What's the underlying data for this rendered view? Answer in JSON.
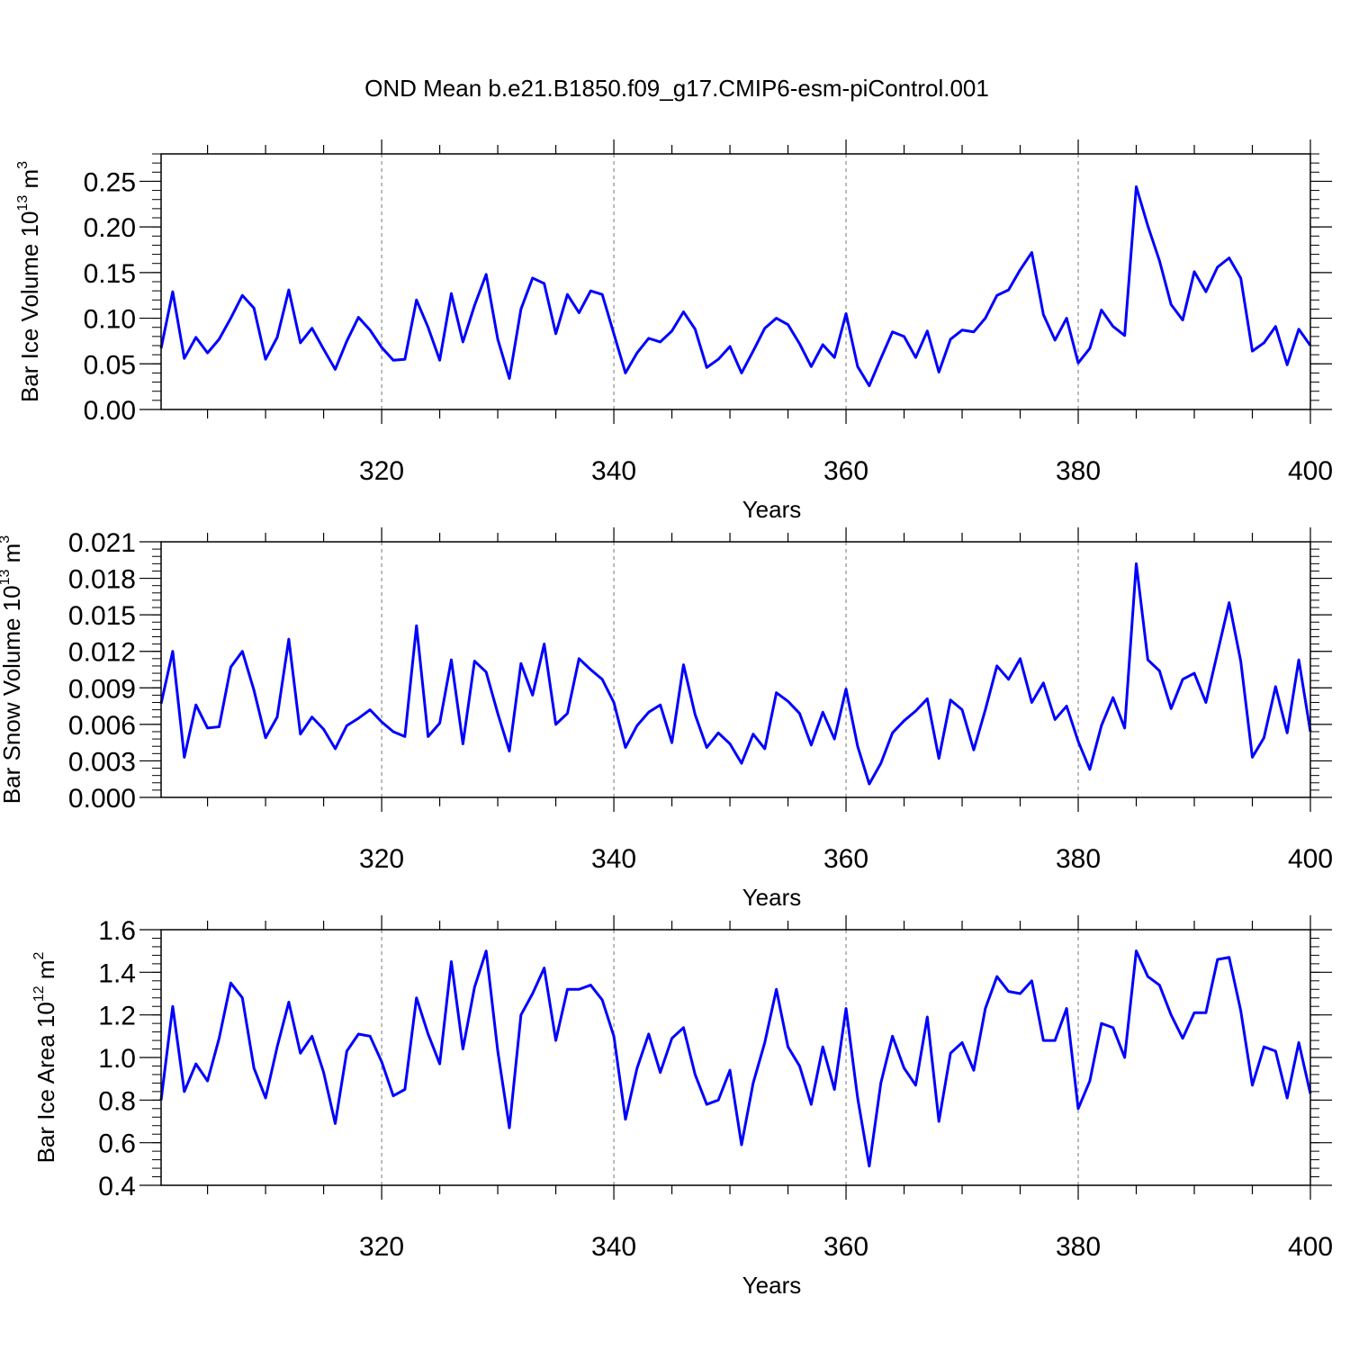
{
  "title": "OND Mean b.e21.B1850.f09_g17.CMIP6-esm-piControl.001",
  "colors": {
    "line": "#0000ff",
    "axis": "#000000",
    "grid": "#777777"
  },
  "chart_data": [
    {
      "type": "line",
      "xlabel": "Years",
      "ylabel": "Bar Ice Volume 10",
      "ylabel_exp": "13",
      "ylabel_unit": " m",
      "ylabel_unit_exp": "3",
      "xlim": [
        301,
        400
      ],
      "ylim": [
        0.0,
        0.28
      ],
      "xticks": [
        320,
        340,
        360,
        380,
        400
      ],
      "xtick_labels": [
        "320",
        "340",
        "360",
        "380",
        "400"
      ],
      "yticks": [
        0.0,
        0.05,
        0.1,
        0.15,
        0.2,
        0.25
      ],
      "ytick_labels": [
        "0.00",
        "0.05",
        "0.10",
        "0.15",
        "0.20",
        "0.25"
      ],
      "grid_x": true,
      "x": [
        301,
        302,
        303,
        304,
        305,
        306,
        307,
        308,
        309,
        310,
        311,
        312,
        313,
        314,
        315,
        316,
        317,
        318,
        319,
        320,
        321,
        322,
        323,
        324,
        325,
        326,
        327,
        328,
        329,
        330,
        331,
        332,
        333,
        334,
        335,
        336,
        337,
        338,
        339,
        340,
        341,
        342,
        343,
        344,
        345,
        346,
        347,
        348,
        349,
        350,
        351,
        352,
        353,
        354,
        355,
        356,
        357,
        358,
        359,
        360,
        361,
        362,
        363,
        364,
        365,
        366,
        367,
        368,
        369,
        370,
        371,
        372,
        373,
        374,
        375,
        376,
        377,
        378,
        379,
        380,
        381,
        382,
        383,
        384,
        385,
        386,
        387,
        388,
        389,
        390,
        391,
        392,
        393,
        394,
        395,
        396,
        397,
        398,
        399,
        400
      ],
      "series": [
        {
          "values": [
            0.067,
            0.129,
            0.056,
            0.079,
            0.062,
            0.077,
            0.1,
            0.125,
            0.111,
            0.055,
            0.079,
            0.131,
            0.073,
            0.089,
            0.066,
            0.044,
            0.075,
            0.101,
            0.087,
            0.068,
            0.054,
            0.055,
            0.12,
            0.09,
            0.054,
            0.127,
            0.074,
            0.114,
            0.148,
            0.077,
            0.034,
            0.11,
            0.144,
            0.138,
            0.083,
            0.126,
            0.106,
            0.13,
            0.126,
            0.083,
            0.04,
            0.062,
            0.078,
            0.074,
            0.086,
            0.107,
            0.088,
            0.046,
            0.055,
            0.069,
            0.04,
            0.064,
            0.089,
            0.1,
            0.093,
            0.072,
            0.047,
            0.071,
            0.057,
            0.105,
            0.047,
            0.026,
            0.056,
            0.085,
            0.08,
            0.057,
            0.086,
            0.041,
            0.077,
            0.087,
            0.085,
            0.1,
            0.125,
            0.131,
            0.153,
            0.172,
            0.104,
            0.076,
            0.1,
            0.051,
            0.067,
            0.109,
            0.091,
            0.081,
            0.244,
            0.201,
            0.163,
            0.115,
            0.098,
            0.151,
            0.129,
            0.156,
            0.166,
            0.144,
            0.064,
            0.073,
            0.091,
            0.049,
            0.088,
            0.07
          ]
        }
      ]
    },
    {
      "type": "line",
      "xlabel": "Years",
      "ylabel": "Bar Snow Volume 10",
      "ylabel_exp": "13",
      "ylabel_unit": " m",
      "ylabel_unit_exp": "3",
      "xlim": [
        301,
        400
      ],
      "ylim": [
        0.0,
        0.021
      ],
      "xticks": [
        320,
        340,
        360,
        380,
        400
      ],
      "xtick_labels": [
        "320",
        "340",
        "360",
        "380",
        "400"
      ],
      "yticks": [
        0.0,
        0.003,
        0.006,
        0.009,
        0.012,
        0.015,
        0.018,
        0.021
      ],
      "ytick_labels": [
        "0.000",
        "0.003",
        "0.006",
        "0.009",
        "0.012",
        "0.015",
        "0.018",
        "0.021"
      ],
      "grid_x": true,
      "x": [
        301,
        302,
        303,
        304,
        305,
        306,
        307,
        308,
        309,
        310,
        311,
        312,
        313,
        314,
        315,
        316,
        317,
        318,
        319,
        320,
        321,
        322,
        323,
        324,
        325,
        326,
        327,
        328,
        329,
        330,
        331,
        332,
        333,
        334,
        335,
        336,
        337,
        338,
        339,
        340,
        341,
        342,
        343,
        344,
        345,
        346,
        347,
        348,
        349,
        350,
        351,
        352,
        353,
        354,
        355,
        356,
        357,
        358,
        359,
        360,
        361,
        362,
        363,
        364,
        365,
        366,
        367,
        368,
        369,
        370,
        371,
        372,
        373,
        374,
        375,
        376,
        377,
        378,
        379,
        380,
        381,
        382,
        383,
        384,
        385,
        386,
        387,
        388,
        389,
        390,
        391,
        392,
        393,
        394,
        395,
        396,
        397,
        398,
        399,
        400
      ],
      "series": [
        {
          "values": [
            0.0077,
            0.012,
            0.0033,
            0.0076,
            0.0057,
            0.0058,
            0.0107,
            0.012,
            0.0088,
            0.0049,
            0.0066,
            0.013,
            0.0052,
            0.0066,
            0.0056,
            0.004,
            0.0059,
            0.0065,
            0.0072,
            0.0062,
            0.0054,
            0.005,
            0.0141,
            0.005,
            0.0061,
            0.0113,
            0.0044,
            0.0112,
            0.0103,
            0.0069,
            0.0038,
            0.011,
            0.0084,
            0.0126,
            0.006,
            0.0069,
            0.0114,
            0.0105,
            0.0097,
            0.0078,
            0.0041,
            0.0059,
            0.007,
            0.0076,
            0.0045,
            0.0109,
            0.0068,
            0.0041,
            0.0053,
            0.0044,
            0.0028,
            0.0052,
            0.004,
            0.0086,
            0.0079,
            0.0069,
            0.0043,
            0.007,
            0.0048,
            0.0089,
            0.0042,
            0.0011,
            0.0028,
            0.0053,
            0.0063,
            0.0071,
            0.0081,
            0.0032,
            0.008,
            0.0072,
            0.0039,
            0.0072,
            0.0108,
            0.0097,
            0.0114,
            0.0078,
            0.0094,
            0.0064,
            0.0075,
            0.0046,
            0.0023,
            0.0059,
            0.0082,
            0.0057,
            0.0192,
            0.0113,
            0.0104,
            0.0073,
            0.0097,
            0.0102,
            0.0078,
            0.0119,
            0.016,
            0.0112,
            0.0033,
            0.0049,
            0.0091,
            0.0053,
            0.0113,
            0.0054
          ]
        }
      ]
    },
    {
      "type": "line",
      "xlabel": "Years",
      "ylabel": "Bar Ice Area 10",
      "ylabel_exp": "12",
      "ylabel_unit": " m",
      "ylabel_unit_exp": "2",
      "xlim": [
        301,
        400
      ],
      "ylim": [
        0.4,
        1.6
      ],
      "xticks": [
        320,
        340,
        360,
        380,
        400
      ],
      "xtick_labels": [
        "320",
        "340",
        "360",
        "380",
        "400"
      ],
      "yticks": [
        0.4,
        0.6,
        0.8,
        1.0,
        1.2,
        1.4,
        1.6
      ],
      "ytick_labels": [
        "0.4",
        "0.6",
        "0.8",
        "1.0",
        "1.2",
        "1.4",
        "1.6"
      ],
      "grid_x": true,
      "x": [
        301,
        302,
        303,
        304,
        305,
        306,
        307,
        308,
        309,
        310,
        311,
        312,
        313,
        314,
        315,
        316,
        317,
        318,
        319,
        320,
        321,
        322,
        323,
        324,
        325,
        326,
        327,
        328,
        329,
        330,
        331,
        332,
        333,
        334,
        335,
        336,
        337,
        338,
        339,
        340,
        341,
        342,
        343,
        344,
        345,
        346,
        347,
        348,
        349,
        350,
        351,
        352,
        353,
        354,
        355,
        356,
        357,
        358,
        359,
        360,
        361,
        362,
        363,
        364,
        365,
        366,
        367,
        368,
        369,
        370,
        371,
        372,
        373,
        374,
        375,
        376,
        377,
        378,
        379,
        380,
        381,
        382,
        383,
        384,
        385,
        386,
        387,
        388,
        389,
        390,
        391,
        392,
        393,
        394,
        395,
        396,
        397,
        398,
        399,
        400
      ],
      "series": [
        {
          "values": [
            0.8,
            1.24,
            0.84,
            0.97,
            0.89,
            1.09,
            1.35,
            1.28,
            0.95,
            0.81,
            1.05,
            1.26,
            1.02,
            1.1,
            0.93,
            0.69,
            1.03,
            1.11,
            1.1,
            0.98,
            0.82,
            0.85,
            1.28,
            1.11,
            0.97,
            1.45,
            1.04,
            1.33,
            1.5,
            1.03,
            0.67,
            1.2,
            1.3,
            1.42,
            1.08,
            1.32,
            1.32,
            1.34,
            1.27,
            1.1,
            0.71,
            0.95,
            1.11,
            0.93,
            1.09,
            1.14,
            0.92,
            0.78,
            0.8,
            0.94,
            0.59,
            0.88,
            1.07,
            1.32,
            1.05,
            0.96,
            0.78,
            1.05,
            0.85,
            1.23,
            0.81,
            0.49,
            0.88,
            1.1,
            0.95,
            0.87,
            1.19,
            0.7,
            1.02,
            1.07,
            0.94,
            1.23,
            1.38,
            1.31,
            1.3,
            1.36,
            1.08,
            1.08,
            1.23,
            0.76,
            0.89,
            1.16,
            1.14,
            1.0,
            1.5,
            1.38,
            1.34,
            1.2,
            1.09,
            1.21,
            1.21,
            1.46,
            1.47,
            1.22,
            0.87,
            1.05,
            1.03,
            0.81,
            1.07,
            0.83
          ]
        }
      ]
    }
  ]
}
